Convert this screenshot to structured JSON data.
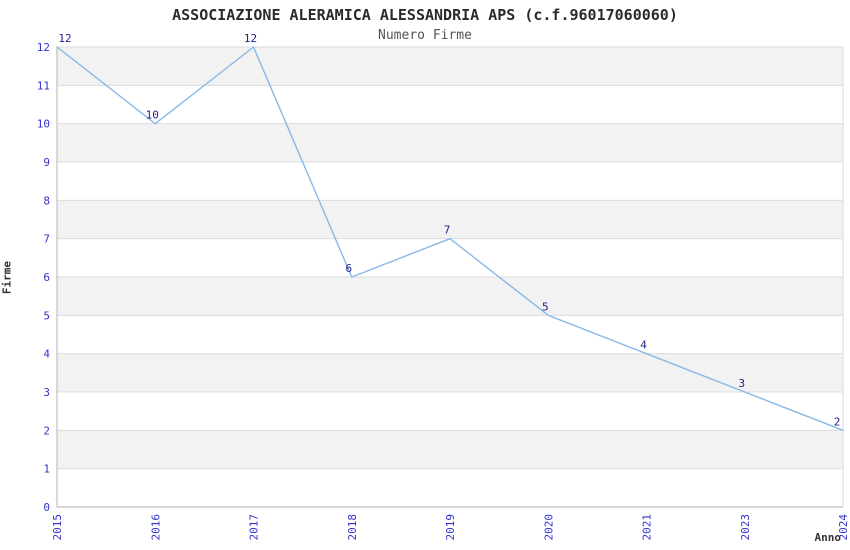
{
  "header": {
    "title": "ASSOCIAZIONE ALERAMICA ALESSANDRIA APS (c.f.96017060060)",
    "subtitle": "Numero Firme"
  },
  "chart_data": {
    "type": "line",
    "title": "ASSOCIAZIONE ALERAMICA ALESSANDRIA APS (c.f.96017060060)",
    "subtitle": "Numero Firme",
    "xlabel": "Anno",
    "ylabel": "Firme",
    "x_categories": [
      "2015",
      "2016",
      "2017",
      "2018",
      "2019",
      "2020",
      "2021",
      "2023",
      "2024"
    ],
    "series": [
      {
        "name": "Numero Firme",
        "values": [
          12,
          10,
          12,
          6,
          7,
          5,
          4,
          3,
          2
        ]
      }
    ],
    "ylim": [
      0,
      12
    ],
    "yticks": [
      0,
      1,
      2,
      3,
      4,
      5,
      6,
      7,
      8,
      9,
      10,
      11,
      12
    ],
    "grid": "horizontal",
    "legend": "none",
    "bands": [
      [
        1,
        2
      ],
      [
        3,
        4
      ],
      [
        5,
        6
      ],
      [
        7,
        8
      ],
      [
        9,
        10
      ],
      [
        11,
        12
      ]
    ],
    "colors": {
      "line": "#88b8e8",
      "tick_label": "#3333cc",
      "point_label": "#1f1f8c",
      "band": "#f2f2f2",
      "gridline": "#dcdcdc",
      "spine": "#c0c0c0",
      "right_spine": "#d9d9d9",
      "title": "#2b2b2b",
      "subtitle": "#555555",
      "axis_label": "#333333",
      "background": "#ffffff"
    }
  }
}
